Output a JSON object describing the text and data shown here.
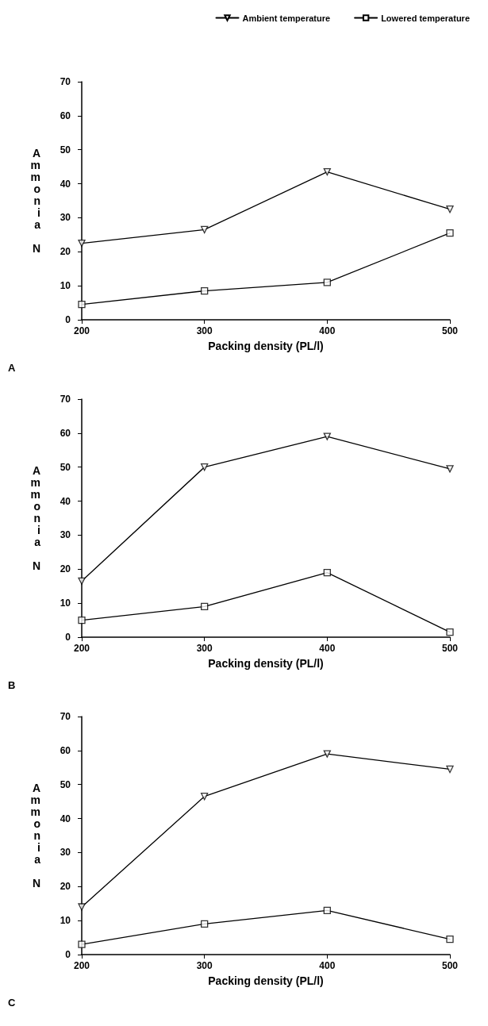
{
  "chart_data": [
    {
      "type": "line",
      "x": [
        200,
        300,
        400,
        500
      ],
      "xlabel": "Packing density (PL/l)",
      "ylabel": "Ammonia N",
      "xlim": [
        200,
        500
      ],
      "xticks": [
        200,
        300,
        400,
        500
      ],
      "ylim": [
        0,
        70
      ],
      "yticks": [
        0,
        10,
        20,
        30,
        40,
        50,
        60,
        70
      ],
      "legend": "top right",
      "grid": false,
      "line_style": "solid",
      "annotations": [
        "A"
      ],
      "series": [
        {
          "name": "Ambient temperature",
          "color": "#000000",
          "marker": "triangle",
          "values": [
            22.5,
            26.5,
            43.5,
            32.5
          ]
        },
        {
          "name": "Lowered temperature",
          "color": "#000000",
          "marker": "square",
          "values": [
            4.5,
            8.5,
            11,
            25.5
          ]
        }
      ]
    },
    {
      "type": "line",
      "x": [
        200,
        300,
        400,
        500
      ],
      "xlabel": "Packing density (PL/l)",
      "ylabel": "Ammonia N",
      "xlim": [
        200,
        500
      ],
      "xticks": [
        200,
        300,
        400,
        500
      ],
      "ylim": [
        0,
        70
      ],
      "yticks": [
        0,
        10,
        20,
        30,
        40,
        50,
        60,
        70
      ],
      "legend": false,
      "grid": false,
      "line_style": "solid",
      "annotations": [
        "B"
      ],
      "series": [
        {
          "color": "#000000",
          "marker": "triangle",
          "values": [
            16.5,
            50,
            59,
            49.5
          ]
        },
        {
          "color": "#000000",
          "marker": "square",
          "values": [
            5,
            9,
            19,
            1.5
          ]
        }
      ]
    },
    {
      "type": "line",
      "x": [
        200,
        300,
        400,
        500
      ],
      "xlabel": "Packing density (PL/l)",
      "ylabel": "Ammonia N",
      "xlim": [
        200,
        500
      ],
      "xticks": [
        200,
        300,
        400,
        500
      ],
      "ylim": [
        0,
        70
      ],
      "yticks": [
        0,
        10,
        20,
        30,
        40,
        50,
        60,
        70
      ],
      "legend": false,
      "grid": false,
      "line_style": "solid",
      "annotations": [
        "C"
      ],
      "series": [
        {
          "color": "#000000",
          "marker": "triangle",
          "values": [
            14,
            46.5,
            59,
            54.5
          ]
        },
        {
          "color": "#000000",
          "marker": "square",
          "values": [
            3,
            9,
            13,
            4.5
          ]
        }
      ]
    }
  ]
}
